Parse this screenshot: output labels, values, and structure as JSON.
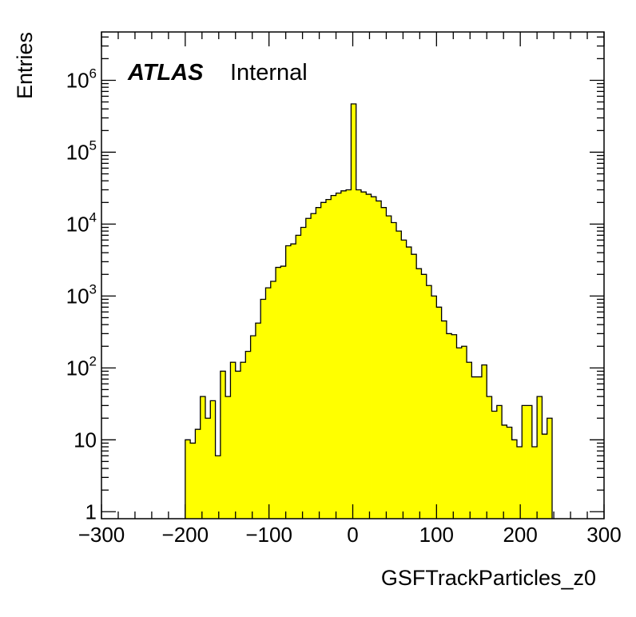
{
  "chart_data": {
    "type": "bar",
    "style": "histogram",
    "fill_color": "#ffff00",
    "line_color": "#000000",
    "xlabel": "GSFTrackParticles_z0",
    "ylabel": "Entries",
    "xlim": [
      -300,
      300
    ],
    "ylim": [
      0.8,
      4700000
    ],
    "yscale": "log",
    "grid": false,
    "legend": null,
    "label": {
      "experiment": "ATLAS",
      "status": "Internal"
    },
    "x_ticks": [
      -300,
      -200,
      -100,
      0,
      100,
      200,
      300
    ],
    "x_tick_labels": [
      "−300",
      "−200",
      "−100",
      "0",
      "100",
      "200",
      "300"
    ],
    "y_ticks": [
      {
        "value": 1,
        "base": "1",
        "exp": ""
      },
      {
        "value": 10,
        "base": "10",
        "exp": ""
      },
      {
        "value": 100,
        "base": "10",
        "exp": "2"
      },
      {
        "value": 1000,
        "base": "10",
        "exp": "3"
      },
      {
        "value": 10000,
        "base": "10",
        "exp": "4"
      },
      {
        "value": 100000,
        "base": "10",
        "exp": "5"
      },
      {
        "value": 1000000,
        "base": "10",
        "exp": "6"
      }
    ],
    "bin_edges_start": -200,
    "bin_width": 6,
    "values": [
      10,
      9,
      14,
      40,
      20,
      35,
      6,
      90,
      40,
      120,
      90,
      120,
      170,
      280,
      420,
      900,
      1300,
      1600,
      2500,
      2600,
      5000,
      5300,
      7000,
      9000,
      12000,
      14000,
      17000,
      20000,
      22000,
      25000,
      27000,
      29000,
      30000,
      470000,
      30000,
      28000,
      26000,
      24000,
      21000,
      17000,
      13000,
      10500,
      8000,
      6000,
      4800,
      3800,
      2400,
      2000,
      1400,
      1000,
      700,
      450,
      300,
      290,
      190,
      200,
      120,
      75,
      75,
      110,
      40,
      25,
      30,
      16,
      15,
      10,
      8,
      30,
      30,
      8,
      40,
      12,
      20
    ]
  }
}
